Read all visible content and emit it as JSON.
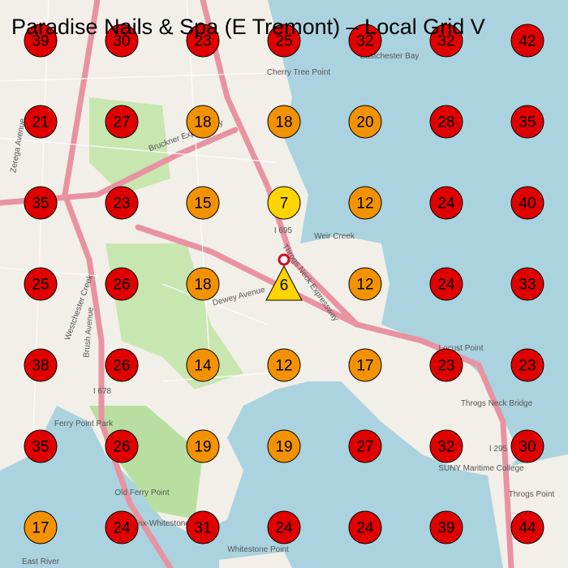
{
  "title": "Paradise Nails & Spa (E Tremont) – Local Grid V",
  "grid": {
    "rows": [
      [
        {
          "rank": 39,
          "color": "#e00000"
        },
        {
          "rank": 30,
          "color": "#e00000"
        },
        {
          "rank": 23,
          "color": "#e00000"
        },
        {
          "rank": 25,
          "color": "#e00000"
        },
        {
          "rank": 32,
          "color": "#e00000"
        },
        {
          "rank": 32,
          "color": "#e00000"
        },
        {
          "rank": 42,
          "color": "#e00000"
        }
      ],
      [
        {
          "rank": 21,
          "color": "#e00000"
        },
        {
          "rank": 27,
          "color": "#e00000"
        },
        {
          "rank": 18,
          "color": "#f39200"
        },
        {
          "rank": 18,
          "color": "#f39200"
        },
        {
          "rank": 20,
          "color": "#f39200"
        },
        {
          "rank": 28,
          "color": "#e00000"
        },
        {
          "rank": 35,
          "color": "#e00000"
        }
      ],
      [
        {
          "rank": 35,
          "color": "#e00000"
        },
        {
          "rank": 23,
          "color": "#e00000"
        },
        {
          "rank": 15,
          "color": "#f39200"
        },
        {
          "rank": 7,
          "color": "#ffd400"
        },
        {
          "rank": 12,
          "color": "#f39200"
        },
        {
          "rank": 24,
          "color": "#e00000"
        },
        {
          "rank": 40,
          "color": "#e00000"
        }
      ],
      [
        {
          "rank": 25,
          "color": "#e00000"
        },
        {
          "rank": 26,
          "color": "#e00000"
        },
        {
          "rank": 18,
          "color": "#f39200"
        },
        {
          "rank": 6,
          "color": "#ffd400",
          "shape": "triangle"
        },
        {
          "rank": 12,
          "color": "#f39200"
        },
        {
          "rank": 24,
          "color": "#e00000"
        },
        {
          "rank": 33,
          "color": "#e00000"
        }
      ],
      [
        {
          "rank": 38,
          "color": "#e00000"
        },
        {
          "rank": 26,
          "color": "#e00000"
        },
        {
          "rank": 14,
          "color": "#f39200"
        },
        {
          "rank": 12,
          "color": "#f39200"
        },
        {
          "rank": 17,
          "color": "#f39200"
        },
        {
          "rank": 23,
          "color": "#e00000"
        },
        {
          "rank": 23,
          "color": "#e00000"
        }
      ],
      [
        {
          "rank": 35,
          "color": "#e00000"
        },
        {
          "rank": 26,
          "color": "#e00000"
        },
        {
          "rank": 19,
          "color": "#f39200"
        },
        {
          "rank": 19,
          "color": "#f39200"
        },
        {
          "rank": 27,
          "color": "#e00000"
        },
        {
          "rank": 32,
          "color": "#e00000"
        },
        {
          "rank": 30,
          "color": "#e00000"
        }
      ],
      [
        {
          "rank": 17,
          "color": "#f39200"
        },
        {
          "rank": 24,
          "color": "#e00000"
        },
        {
          "rank": 31,
          "color": "#e00000"
        },
        {
          "rank": 24,
          "color": "#e00000"
        },
        {
          "rank": 24,
          "color": "#e00000"
        },
        {
          "rank": 39,
          "color": "#e00000"
        },
        {
          "rank": 44,
          "color": "#e00000"
        }
      ]
    ]
  },
  "map_labels": [
    "Cherry Tree Point",
    "Eastchester Bay",
    "Weir Creek",
    "Locust Point",
    "Throgs Neck Bridge",
    "SUNY Maritime College",
    "Throgs Point",
    "Old Ferry Point",
    "Bronx-Whitestone Bridge",
    "Whitestone Point",
    "Ferry Point Park",
    "East River",
    "Westchester Creek",
    "Bruckner Expressway",
    "Throgs Neck Expressway",
    "Dewey Avenue",
    "Zerega Avenue",
    "Brush Avenue",
    "I 695",
    "I 678",
    "I 295"
  ]
}
